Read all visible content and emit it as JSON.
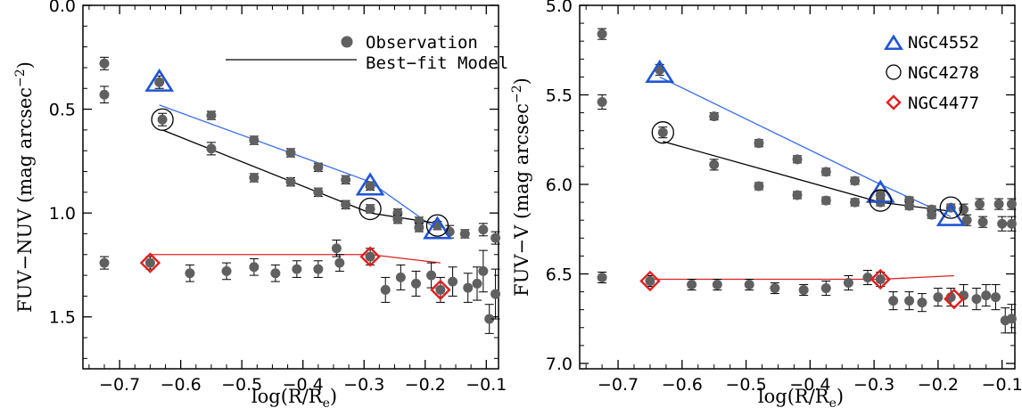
{
  "chart_data": [
    {
      "type": "scatter",
      "xlabel_main": "log(R/R",
      "xlabel_sub": "e",
      "xlabel_tail": ")",
      "ylabel_main": "FUV−NUV (mag arcsec",
      "ylabel_sup": "−2",
      "ylabel_tail": ")",
      "xlim": [
        -0.76,
        -0.08
      ],
      "ylim": [
        1.75,
        0.0
      ],
      "y_inverted": true,
      "xticks": [
        -0.7,
        -0.6,
        -0.5,
        -0.4,
        -0.3,
        -0.2,
        -0.1
      ],
      "xtick_labels": [
        "−0.7",
        "−0.6",
        "−0.5",
        "−0.4",
        "−0.3",
        "−0.2",
        "−0.1"
      ],
      "yticks": [
        0.0,
        0.5,
        1.0,
        1.5
      ],
      "ytick_labels": [
        "0.0",
        "0.5",
        "1.0",
        "1.5"
      ],
      "legend": {
        "placement": "top-right",
        "items": [
          {
            "label": "Observation",
            "marker": "filled-circle"
          },
          {
            "label": "Best−fit Model",
            "marker": "line"
          }
        ]
      },
      "series": [
        {
          "marker": "filled-circle",
          "color": "#606060",
          "points": [
            {
              "x": -0.725,
              "y": 0.28,
              "err": 0.03
            },
            {
              "x": -0.725,
              "y": 0.43,
              "err": 0.04
            },
            {
              "x": -0.635,
              "y": 0.37,
              "err": 0.03
            },
            {
              "x": -0.63,
              "y": 0.55,
              "err": 0.03
            },
            {
              "x": -0.55,
              "y": 0.53,
              "err": 0.02
            },
            {
              "x": -0.55,
              "y": 0.69,
              "err": 0.03
            },
            {
              "x": -0.48,
              "y": 0.65,
              "err": 0.02
            },
            {
              "x": -0.48,
              "y": 0.83,
              "err": 0.02
            },
            {
              "x": -0.42,
              "y": 0.71,
              "err": 0.02
            },
            {
              "x": -0.42,
              "y": 0.85,
              "err": 0.02
            },
            {
              "x": -0.375,
              "y": 0.78,
              "err": 0.02
            },
            {
              "x": -0.375,
              "y": 0.9,
              "err": 0.02
            },
            {
              "x": -0.33,
              "y": 0.84,
              "err": 0.02
            },
            {
              "x": -0.33,
              "y": 0.96,
              "err": 0.02
            },
            {
              "x": -0.29,
              "y": 0.87,
              "err": 0.02
            },
            {
              "x": -0.29,
              "y": 0.98,
              "err": 0.02
            },
            {
              "x": -0.245,
              "y": 1.0,
              "err": 0.02
            },
            {
              "x": -0.245,
              "y": 1.03,
              "err": 0.02
            },
            {
              "x": -0.21,
              "y": 1.04,
              "err": 0.02
            },
            {
              "x": -0.21,
              "y": 1.07,
              "err": 0.02
            },
            {
              "x": -0.18,
              "y": 1.06,
              "err": 0.02
            },
            {
              "x": -0.16,
              "y": 1.09,
              "err": 0.03
            },
            {
              "x": -0.135,
              "y": 1.1,
              "err": 0.02
            },
            {
              "x": -0.105,
              "y": 1.08,
              "err": 0.03
            },
            {
              "x": -0.085,
              "y": 1.12,
              "err": 0.03
            },
            {
              "x": -0.725,
              "y": 1.24,
              "err": 0.03
            },
            {
              "x": -0.65,
              "y": 1.24,
              "err": 0.03
            },
            {
              "x": -0.585,
              "y": 1.29,
              "err": 0.04
            },
            {
              "x": -0.525,
              "y": 1.28,
              "err": 0.04
            },
            {
              "x": -0.48,
              "y": 1.26,
              "err": 0.04
            },
            {
              "x": -0.445,
              "y": 1.29,
              "err": 0.04
            },
            {
              "x": -0.41,
              "y": 1.27,
              "err": 0.04
            },
            {
              "x": -0.375,
              "y": 1.27,
              "err": 0.04
            },
            {
              "x": -0.345,
              "y": 1.17,
              "err": 0.04
            },
            {
              "x": -0.34,
              "y": 1.24,
              "err": 0.04
            },
            {
              "x": -0.29,
              "y": 1.21,
              "err": 0.04
            },
            {
              "x": -0.265,
              "y": 1.37,
              "err": 0.06
            },
            {
              "x": -0.24,
              "y": 1.31,
              "err": 0.06
            },
            {
              "x": -0.215,
              "y": 1.34,
              "err": 0.06
            },
            {
              "x": -0.19,
              "y": 1.3,
              "err": 0.06
            },
            {
              "x": -0.175,
              "y": 1.37,
              "err": 0.06
            },
            {
              "x": -0.155,
              "y": 1.33,
              "err": 0.07
            },
            {
              "x": -0.13,
              "y": 1.36,
              "err": 0.07
            },
            {
              "x": -0.115,
              "y": 1.34,
              "err": 0.08
            },
            {
              "x": -0.105,
              "y": 1.28,
              "err": 0.1
            },
            {
              "x": -0.095,
              "y": 1.51,
              "err": 0.07
            },
            {
              "x": -0.085,
              "y": 1.39,
              "err": 0.12
            }
          ]
        },
        {
          "marker": "open-triangle",
          "color": "#1f55d6",
          "line_color": "#3a6ee8",
          "points": [
            {
              "x": -0.635,
              "y": 0.37
            },
            {
              "x": -0.29,
              "y": 0.87
            },
            {
              "x": -0.18,
              "y": 1.08
            }
          ],
          "model": [
            [
              -0.635,
              0.48
            ],
            [
              -0.29,
              0.85
            ],
            [
              -0.18,
              1.08
            ]
          ]
        },
        {
          "marker": "open-circle",
          "color": "#000000",
          "line_color": "#000000",
          "points": [
            {
              "x": -0.63,
              "y": 0.55
            },
            {
              "x": -0.29,
              "y": 0.98
            },
            {
              "x": -0.18,
              "y": 1.06
            }
          ],
          "model": [
            [
              -0.63,
              0.6
            ],
            [
              -0.29,
              1.0
            ],
            [
              -0.18,
              1.05
            ]
          ]
        },
        {
          "marker": "open-diamond",
          "color": "#e02020",
          "line_color": "#e02020",
          "points": [
            {
              "x": -0.65,
              "y": 1.24
            },
            {
              "x": -0.29,
              "y": 1.21
            },
            {
              "x": -0.175,
              "y": 1.37
            }
          ],
          "model": [
            [
              -0.65,
              1.2
            ],
            [
              -0.29,
              1.2
            ],
            [
              -0.175,
              1.24
            ]
          ]
        }
      ]
    },
    {
      "type": "scatter",
      "xlabel_main": "log(R/R",
      "xlabel_sub": "e",
      "xlabel_tail": ")",
      "ylabel_main": "FUV−V (mag arcsec",
      "ylabel_sup": "−2",
      "ylabel_tail": ")",
      "xlim": [
        -0.76,
        -0.08
      ],
      "ylim": [
        7.03,
        5.0
      ],
      "y_inverted": true,
      "xticks": [
        -0.7,
        -0.6,
        -0.5,
        -0.4,
        -0.3,
        -0.2,
        -0.1
      ],
      "xtick_labels": [
        "−0.7",
        "−0.6",
        "−0.5",
        "−0.4",
        "−0.3",
        "−0.2",
        "−0.1"
      ],
      "yticks": [
        5.0,
        5.5,
        6.0,
        6.5,
        7.0
      ],
      "ytick_labels": [
        "5.0",
        "5.5",
        "6.0",
        "6.5",
        "7.0"
      ],
      "legend": {
        "placement": "top-right",
        "items": [
          {
            "label": "NGC4552",
            "marker": "open-triangle",
            "color": "#1f55d6"
          },
          {
            "label": "NGC4278",
            "marker": "open-circle",
            "color": "#000000"
          },
          {
            "label": "NGC4477",
            "marker": "open-diamond",
            "color": "#e02020"
          }
        ]
      },
      "series": [
        {
          "marker": "filled-circle",
          "color": "#606060",
          "points": [
            {
              "x": -0.725,
              "y": 5.16,
              "err": 0.03
            },
            {
              "x": -0.725,
              "y": 5.54,
              "err": 0.04
            },
            {
              "x": -0.635,
              "y": 5.36,
              "err": 0.03
            },
            {
              "x": -0.63,
              "y": 5.71,
              "err": 0.03
            },
            {
              "x": -0.55,
              "y": 5.62,
              "err": 0.02
            },
            {
              "x": -0.55,
              "y": 5.89,
              "err": 0.03
            },
            {
              "x": -0.48,
              "y": 5.77,
              "err": 0.02
            },
            {
              "x": -0.48,
              "y": 6.01,
              "err": 0.02
            },
            {
              "x": -0.42,
              "y": 5.86,
              "err": 0.02
            },
            {
              "x": -0.42,
              "y": 6.06,
              "err": 0.02
            },
            {
              "x": -0.375,
              "y": 5.93,
              "err": 0.02
            },
            {
              "x": -0.375,
              "y": 6.09,
              "err": 0.02
            },
            {
              "x": -0.33,
              "y": 5.98,
              "err": 0.02
            },
            {
              "x": -0.33,
              "y": 6.1,
              "err": 0.02
            },
            {
              "x": -0.29,
              "y": 6.06,
              "err": 0.02
            },
            {
              "x": -0.29,
              "y": 6.1,
              "err": 0.02
            },
            {
              "x": -0.245,
              "y": 6.09,
              "err": 0.02
            },
            {
              "x": -0.245,
              "y": 6.12,
              "err": 0.02
            },
            {
              "x": -0.21,
              "y": 6.14,
              "err": 0.02
            },
            {
              "x": -0.21,
              "y": 6.17,
              "err": 0.02
            },
            {
              "x": -0.18,
              "y": 6.13,
              "err": 0.02
            },
            {
              "x": -0.16,
              "y": 6.14,
              "err": 0.03
            },
            {
              "x": -0.155,
              "y": 6.2,
              "err": 0.03
            },
            {
              "x": -0.135,
              "y": 6.11,
              "err": 0.03
            },
            {
              "x": -0.13,
              "y": 6.21,
              "err": 0.03
            },
            {
              "x": -0.105,
              "y": 6.11,
              "err": 0.03
            },
            {
              "x": -0.1,
              "y": 6.22,
              "err": 0.04
            },
            {
              "x": -0.085,
              "y": 6.11,
              "err": 0.03
            },
            {
              "x": -0.085,
              "y": 6.22,
              "err": 0.04
            },
            {
              "x": -0.725,
              "y": 6.52,
              "err": 0.03
            },
            {
              "x": -0.65,
              "y": 6.54,
              "err": 0.03
            },
            {
              "x": -0.585,
              "y": 6.56,
              "err": 0.03
            },
            {
              "x": -0.545,
              "y": 6.56,
              "err": 0.03
            },
            {
              "x": -0.495,
              "y": 6.56,
              "err": 0.03
            },
            {
              "x": -0.455,
              "y": 6.58,
              "err": 0.03
            },
            {
              "x": -0.41,
              "y": 6.59,
              "err": 0.03
            },
            {
              "x": -0.375,
              "y": 6.58,
              "err": 0.04
            },
            {
              "x": -0.34,
              "y": 6.55,
              "err": 0.04
            },
            {
              "x": -0.31,
              "y": 6.52,
              "err": 0.04
            },
            {
              "x": -0.29,
              "y": 6.53,
              "err": 0.04
            },
            {
              "x": -0.27,
              "y": 6.65,
              "err": 0.05
            },
            {
              "x": -0.245,
              "y": 6.65,
              "err": 0.05
            },
            {
              "x": -0.225,
              "y": 6.66,
              "err": 0.05
            },
            {
              "x": -0.2,
              "y": 6.63,
              "err": 0.05
            },
            {
              "x": -0.18,
              "y": 6.63,
              "err": 0.05
            },
            {
              "x": -0.16,
              "y": 6.62,
              "err": 0.06
            },
            {
              "x": -0.14,
              "y": 6.64,
              "err": 0.06
            },
            {
              "x": -0.125,
              "y": 6.62,
              "err": 0.06
            },
            {
              "x": -0.11,
              "y": 6.63,
              "err": 0.07
            },
            {
              "x": -0.095,
              "y": 6.76,
              "err": 0.07
            },
            {
              "x": -0.085,
              "y": 6.75,
              "err": 0.08
            }
          ]
        },
        {
          "marker": "open-triangle",
          "color": "#1f55d6",
          "line_color": "#3a6ee8",
          "points": [
            {
              "x": -0.635,
              "y": 5.38
            },
            {
              "x": -0.29,
              "y": 6.05
            },
            {
              "x": -0.18,
              "y": 6.18
            }
          ],
          "model": [
            [
              -0.635,
              5.4
            ],
            [
              -0.29,
              6.0
            ],
            [
              -0.18,
              6.18
            ]
          ]
        },
        {
          "marker": "open-circle",
          "color": "#000000",
          "line_color": "#000000",
          "points": [
            {
              "x": -0.63,
              "y": 5.71
            },
            {
              "x": -0.29,
              "y": 6.09
            },
            {
              "x": -0.18,
              "y": 6.13
            }
          ],
          "model": [
            [
              -0.63,
              5.76
            ],
            [
              -0.29,
              6.1
            ],
            [
              -0.18,
              6.15
            ]
          ]
        },
        {
          "marker": "open-diamond",
          "color": "#e02020",
          "line_color": "#e02020",
          "points": [
            {
              "x": -0.65,
              "y": 6.54
            },
            {
              "x": -0.29,
              "y": 6.53
            },
            {
              "x": -0.175,
              "y": 6.64
            }
          ],
          "model": [
            [
              -0.65,
              6.53
            ],
            [
              -0.29,
              6.53
            ],
            [
              -0.175,
              6.51
            ]
          ]
        }
      ]
    }
  ]
}
